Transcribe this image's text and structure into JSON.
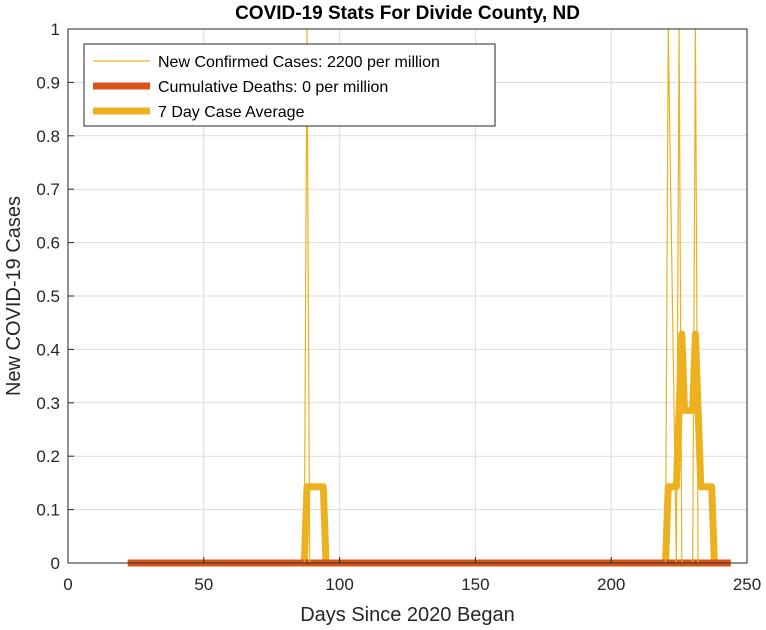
{
  "chart_data": {
    "type": "line",
    "title": "COVID-19 Stats For Divide County, ND",
    "xlabel": "Days Since 2020 Began",
    "ylabel": "New COVID-19 Cases",
    "xlim": [
      0,
      250
    ],
    "ylim": [
      0,
      1
    ],
    "xticks": [
      0,
      50,
      100,
      150,
      200,
      250
    ],
    "yticks": [
      0,
      0.1,
      0.2,
      0.3,
      0.4,
      0.5,
      0.6,
      0.7,
      0.8,
      0.9,
      1
    ],
    "grid": true,
    "legend_position": "top-left",
    "series": [
      {
        "name": "New Confirmed Cases: 2200 per million",
        "color": "#EDB120",
        "width": "thin",
        "x": [
          22,
          87,
          88,
          89,
          220,
          221,
          224,
          225,
          226,
          227,
          230,
          231,
          232,
          244
        ],
        "y": [
          0,
          0,
          1,
          0,
          0,
          1,
          0,
          1,
          0,
          0,
          0,
          1,
          0,
          0
        ]
      },
      {
        "name": "Cumulative Deaths: 0 per million",
        "color": "#D95319",
        "width": "thick",
        "x": [
          22,
          244
        ],
        "y": [
          0,
          0
        ]
      },
      {
        "name": "7 Day Case Average",
        "color": "#EDB120",
        "width": "thick",
        "x": [
          22,
          87,
          88,
          94,
          95,
          220,
          221,
          224,
          225,
          226,
          227,
          230,
          231,
          232,
          233,
          237,
          238,
          244
        ],
        "y": [
          0,
          0,
          0.1429,
          0.1429,
          0,
          0,
          0.1429,
          0.1429,
          0.2857,
          0.4286,
          0.2857,
          0.2857,
          0.4286,
          0.2857,
          0.1429,
          0.1429,
          0,
          0
        ]
      }
    ]
  }
}
